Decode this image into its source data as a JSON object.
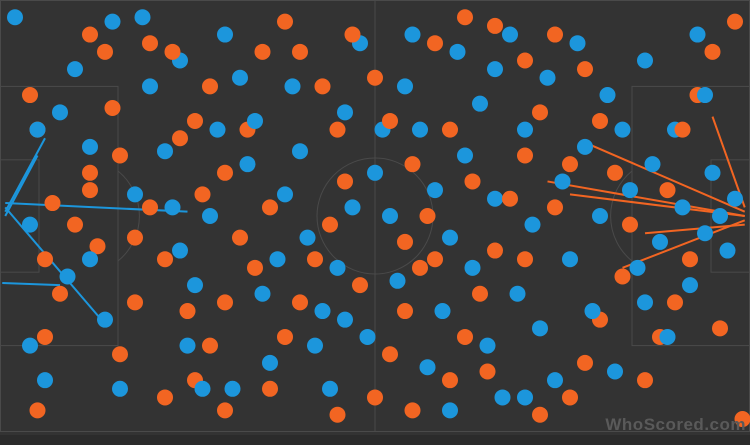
{
  "chart_data": {
    "type": "scatter",
    "title": "",
    "xlim": [
      0,
      100
    ],
    "ylim": [
      0,
      100
    ],
    "grid": false,
    "colors": {
      "background": "#333333",
      "lines": "#4a4a4a",
      "team_orange": "#f26522",
      "team_blue": "#1c96dc"
    },
    "series": [
      {
        "color": "#f26522",
        "points": [
          [
            4,
            22
          ],
          [
            5,
            30
          ],
          [
            7,
            47
          ],
          [
            6,
            60
          ],
          [
            8,
            68
          ],
          [
            6,
            78
          ],
          [
            10,
            52
          ],
          [
            12,
            44
          ],
          [
            13,
            57
          ],
          [
            12,
            40
          ],
          [
            15,
            25
          ],
          [
            16,
            36
          ],
          [
            18,
            55
          ],
          [
            20,
            48
          ],
          [
            22,
            60
          ],
          [
            24,
            32
          ],
          [
            26,
            28
          ],
          [
            28,
            20
          ],
          [
            23,
            12
          ],
          [
            20,
            10
          ],
          [
            14,
            12
          ],
          [
            12,
            8
          ],
          [
            30,
            40
          ],
          [
            32,
            55
          ],
          [
            34,
            62
          ],
          [
            30,
            70
          ],
          [
            28,
            80
          ],
          [
            26,
            88
          ],
          [
            22,
            92
          ],
          [
            30,
            95
          ],
          [
            36,
            90
          ],
          [
            38,
            78
          ],
          [
            40,
            70
          ],
          [
            42,
            60
          ],
          [
            44,
            52
          ],
          [
            46,
            42
          ],
          [
            45,
            30
          ],
          [
            43,
            20
          ],
          [
            40,
            12
          ],
          [
            38,
            5
          ],
          [
            47,
            8
          ],
          [
            50,
            18
          ],
          [
            52,
            28
          ],
          [
            55,
            38
          ],
          [
            57,
            50
          ],
          [
            56,
            62
          ],
          [
            54,
            72
          ],
          [
            52,
            82
          ],
          [
            50,
            92
          ],
          [
            55,
            95
          ],
          [
            60,
            88
          ],
          [
            62,
            78
          ],
          [
            64,
            68
          ],
          [
            66,
            58
          ],
          [
            68,
            46
          ],
          [
            70,
            36
          ],
          [
            72,
            26
          ],
          [
            70,
            14
          ],
          [
            66,
            6
          ],
          [
            62,
            4
          ],
          [
            58,
            10
          ],
          [
            74,
            8
          ],
          [
            78,
            16
          ],
          [
            80,
            28
          ],
          [
            82,
            40
          ],
          [
            84,
            52
          ],
          [
            83,
            64
          ],
          [
            80,
            74
          ],
          [
            78,
            84
          ],
          [
            76,
            92
          ],
          [
            72,
            96
          ],
          [
            86,
            88
          ],
          [
            88,
            78
          ],
          [
            90,
            70
          ],
          [
            92,
            60
          ],
          [
            91,
            30
          ],
          [
            93,
            22
          ],
          [
            95,
            12
          ],
          [
            98,
            5
          ],
          [
            89,
            44
          ],
          [
            60,
            30
          ],
          [
            63,
            42
          ],
          [
            58,
            60
          ],
          [
            48,
            66
          ],
          [
            36,
            48
          ],
          [
            33,
            30
          ],
          [
            27,
            45
          ],
          [
            18,
            70
          ],
          [
            16,
            82
          ],
          [
            25,
            72
          ],
          [
            35,
            12
          ],
          [
            54,
            56
          ],
          [
            65,
            86
          ],
          [
            70,
            60
          ],
          [
            74,
            48
          ],
          [
            76,
            38
          ],
          [
            96,
            76
          ],
          [
            99,
            97
          ],
          [
            5,
            95
          ],
          [
            45,
            96
          ]
        ]
      },
      {
        "color": "#1c96dc",
        "points": [
          [
            2,
            4
          ],
          [
            5,
            30
          ],
          [
            8,
            26
          ],
          [
            10,
            16
          ],
          [
            12,
            34
          ],
          [
            14,
            74
          ],
          [
            9,
            64
          ],
          [
            4,
            80
          ],
          [
            6,
            88
          ],
          [
            18,
            45
          ],
          [
            20,
            20
          ],
          [
            22,
            35
          ],
          [
            24,
            58
          ],
          [
            26,
            66
          ],
          [
            28,
            50
          ],
          [
            30,
            8
          ],
          [
            32,
            18
          ],
          [
            33,
            38
          ],
          [
            34,
            28
          ],
          [
            35,
            68
          ],
          [
            36,
            84
          ],
          [
            31,
            90
          ],
          [
            38,
            45
          ],
          [
            40,
            35
          ],
          [
            41,
            55
          ],
          [
            42,
            80
          ],
          [
            44,
            90
          ],
          [
            45,
            62
          ],
          [
            46,
            26
          ],
          [
            48,
            10
          ],
          [
            50,
            40
          ],
          [
            52,
            50
          ],
          [
            53,
            65
          ],
          [
            54,
            20
          ],
          [
            56,
            30
          ],
          [
            57,
            85
          ],
          [
            58,
            44
          ],
          [
            59,
            72
          ],
          [
            60,
            55
          ],
          [
            61,
            12
          ],
          [
            62,
            36
          ],
          [
            63,
            62
          ],
          [
            64,
            24
          ],
          [
            65,
            80
          ],
          [
            66,
            46
          ],
          [
            67,
            92
          ],
          [
            68,
            8
          ],
          [
            69,
            68
          ],
          [
            70,
            30
          ],
          [
            71,
            52
          ],
          [
            72,
            76
          ],
          [
            73,
            18
          ],
          [
            74,
            88
          ],
          [
            75,
            42
          ],
          [
            76,
            60
          ],
          [
            77,
            10
          ],
          [
            78,
            34
          ],
          [
            79,
            72
          ],
          [
            80,
            50
          ],
          [
            81,
            22
          ],
          [
            82,
            86
          ],
          [
            84,
            44
          ],
          [
            85,
            62
          ],
          [
            86,
            14
          ],
          [
            87,
            38
          ],
          [
            88,
            56
          ],
          [
            89,
            78
          ],
          [
            90,
            30
          ],
          [
            91,
            48
          ],
          [
            92,
            66
          ],
          [
            93,
            8
          ],
          [
            94,
            54
          ],
          [
            95,
            40
          ],
          [
            96,
            50
          ],
          [
            97,
            58
          ],
          [
            98,
            46
          ],
          [
            25,
            80
          ],
          [
            27,
            90
          ],
          [
            16,
            90
          ],
          [
            19,
            4
          ],
          [
            29,
            30
          ],
          [
            37,
            60
          ],
          [
            39,
            20
          ],
          [
            43,
            72
          ],
          [
            47,
            48
          ],
          [
            49,
            78
          ],
          [
            51,
            30
          ],
          [
            55,
            8
          ],
          [
            12,
            60
          ],
          [
            15,
            5
          ],
          [
            23,
            48
          ],
          [
            60,
            95
          ],
          [
            70,
            92
          ],
          [
            86,
            70
          ],
          [
            94,
            22
          ],
          [
            4,
            52
          ],
          [
            24,
            14
          ],
          [
            46,
            74
          ],
          [
            83,
            30
          ],
          [
            66,
            16
          ]
        ]
      }
    ],
    "lines": [
      {
        "color": "#1c96dc",
        "from": [
          0.7,
          47
        ],
        "to": [
          25,
          49
        ]
      },
      {
        "color": "#1c96dc",
        "from": [
          0.7,
          48
        ],
        "to": [
          14,
          75
        ]
      },
      {
        "color": "#1c96dc",
        "from": [
          0.7,
          49
        ],
        "to": [
          6,
          32
        ]
      },
      {
        "color": "#1c96dc",
        "from": [
          0.7,
          50
        ],
        "to": [
          5,
          36
        ]
      },
      {
        "color": "#1c96dc",
        "from": [
          0.3,
          65.5
        ],
        "to": [
          8,
          66
        ]
      },
      {
        "color": "#f26522",
        "from": [
          99.3,
          50
        ],
        "to": [
          73,
          42
        ]
      },
      {
        "color": "#f26522",
        "from": [
          99.3,
          49
        ],
        "to": [
          78,
          33
        ]
      },
      {
        "color": "#f26522",
        "from": [
          99.3,
          51
        ],
        "to": [
          83,
          62
        ]
      },
      {
        "color": "#f26522",
        "from": [
          99.3,
          48
        ],
        "to": [
          95,
          27
        ]
      },
      {
        "color": "#f26522",
        "from": [
          99.3,
          52
        ],
        "to": [
          86,
          54
        ]
      },
      {
        "color": "#f26522",
        "from": [
          99.3,
          50
        ],
        "to": [
          76,
          45
        ]
      }
    ]
  },
  "watermark": "WhoScored.com"
}
